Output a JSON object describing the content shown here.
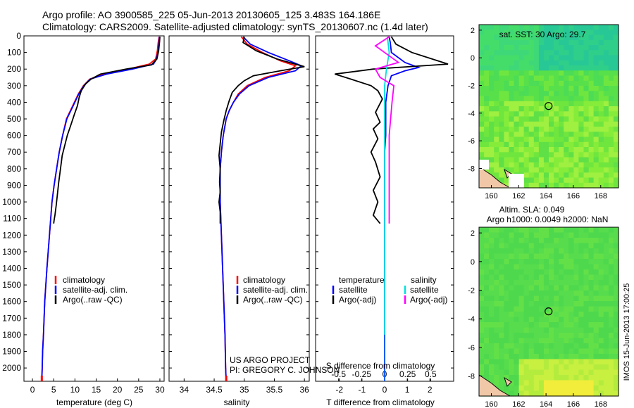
{
  "header": {
    "title_line1": "Argo profile: AO 3900585_225 05-Jun-2013 20130605_125 3.483S 164.186E",
    "title_line2": "Climatology: CARS2009. Satellite-adjusted climatology: synTS_20130607.nc (1.4d later)"
  },
  "credits": {
    "project": "US ARGO PROJECT",
    "pi": "PI: GREGORY C. JOHNSON"
  },
  "timestamp": "IMOS 15-Jun-2013 17:00:25",
  "colors": {
    "climatology": "#ff0000",
    "satellite": "#0000ff",
    "argo": "#000000",
    "salinity_satellite": "#00e0e0",
    "salinity_argo": "#ff00ff"
  },
  "chart_data": [
    {
      "type": "line",
      "id": "temperature",
      "xlabel": "temperature (deg C)",
      "ylabel": "",
      "xlim": [
        -2,
        31
      ],
      "ylim": [
        2080,
        0
      ],
      "xticks": [
        "0",
        "5",
        "10",
        "15",
        "20",
        "25",
        "30"
      ],
      "xtick_values": [
        0,
        5,
        10,
        15,
        20,
        25,
        30
      ],
      "yticks": [
        "0",
        "100",
        "200",
        "300",
        "400",
        "500",
        "600",
        "700",
        "800",
        "900",
        "1000",
        "1100",
        "1200",
        "1300",
        "1400",
        "1500",
        "1600",
        "1700",
        "1800",
        "1900",
        "2000"
      ],
      "ytick_values": [
        0,
        100,
        200,
        300,
        400,
        500,
        600,
        700,
        800,
        900,
        1000,
        1100,
        1200,
        1300,
        1400,
        1500,
        1600,
        1700,
        1800,
        1900,
        2000
      ],
      "legend": [
        "climatology",
        "satellite-adj. clim.",
        "Argo(..raw -QC)"
      ],
      "series": [
        {
          "name": "climatology",
          "color": "#ff0000",
          "x": [
            29.8,
            29.6,
            29.4,
            29.0,
            27.5,
            22.5,
            17.0,
            13.5,
            12.0,
            10.8,
            9.5,
            8.0,
            7.1,
            6.3,
            5.7,
            5.1,
            4.6,
            4.0,
            3.4,
            2.9,
            2.6,
            2.4,
            2.3,
            2.2
          ],
          "y": [
            5,
            40,
            90,
            140,
            170,
            200,
            230,
            260,
            300,
            350,
            420,
            500,
            600,
            700,
            800,
            900,
            1000,
            1200,
            1400,
            1600,
            1800,
            1900,
            2000,
            2080
          ]
        },
        {
          "name": "satellite-adj. clim.",
          "color": "#0000ff",
          "x": [
            29.9,
            29.8,
            29.6,
            29.2,
            28.5,
            23.5,
            17.5,
            13.6,
            12.1,
            10.9,
            9.6,
            8.1,
            7.1,
            6.3,
            5.7,
            5.1,
            4.6,
            4.0,
            3.4,
            2.9,
            2.6,
            2.4,
            2.3,
            2.2
          ],
          "y": [
            5,
            40,
            90,
            140,
            170,
            200,
            230,
            260,
            300,
            350,
            420,
            500,
            600,
            700,
            800,
            900,
            1000,
            1200,
            1400,
            1600,
            1800,
            1900,
            2000,
            2080
          ]
        },
        {
          "name": "Argo(..raw -QC)",
          "color": "#000000",
          "x": [
            30.0,
            29.9,
            29.7,
            29.3,
            28.0,
            22.0,
            16.0,
            13.8,
            12.5,
            11.5,
            11.0,
            10.6,
            9.9,
            9.0,
            8.2,
            7.6,
            7.0,
            6.6,
            6.2,
            5.9,
            5.6,
            5.3,
            5.1,
            5.0
          ],
          "y": [
            5,
            40,
            90,
            140,
            175,
            200,
            230,
            260,
            290,
            330,
            370,
            420,
            470,
            540,
            600,
            660,
            720,
            800,
            880,
            950,
            1020,
            1080,
            1110,
            1130
          ]
        }
      ]
    },
    {
      "type": "line",
      "id": "salinity",
      "xlabel": "salinity",
      "ylabel": "",
      "xlim": [
        33.75,
        36.08
      ],
      "ylim": [
        2080,
        0
      ],
      "xticks": [
        "34",
        "34.5",
        "35",
        "35.5",
        "36"
      ],
      "xtick_values": [
        34,
        34.5,
        35,
        35.5,
        36
      ],
      "legend": [
        "climatology",
        "satellite-adj. clim.",
        "Argo(..raw -QC)"
      ],
      "series": [
        {
          "name": "climatology",
          "color": "#ff0000",
          "x": [
            34.95,
            35.05,
            35.3,
            35.6,
            35.85,
            35.75,
            35.35,
            35.05,
            34.9,
            34.82,
            34.75,
            34.7,
            34.65,
            34.62,
            34.6,
            34.6,
            34.6,
            34.62,
            34.64,
            34.66,
            34.68,
            34.69,
            34.7
          ],
          "y": [
            5,
            50,
            100,
            150,
            180,
            210,
            250,
            300,
            350,
            400,
            450,
            500,
            600,
            700,
            800,
            900,
            1000,
            1200,
            1400,
            1600,
            1800,
            2000,
            2080
          ]
        },
        {
          "name": "satellite-adj. clim.",
          "color": "#0000ff",
          "x": [
            34.98,
            35.1,
            35.4,
            35.75,
            35.95,
            35.85,
            35.4,
            35.08,
            34.92,
            34.82,
            34.75,
            34.7,
            34.65,
            34.62,
            34.6,
            34.6,
            34.6,
            34.62,
            34.64,
            34.66,
            34.68,
            34.69,
            34.7
          ],
          "y": [
            5,
            50,
            100,
            150,
            180,
            210,
            250,
            300,
            350,
            400,
            450,
            500,
            600,
            700,
            800,
            900,
            1000,
            1200,
            1400,
            1600,
            1800,
            2000,
            2080
          ]
        },
        {
          "name": "Argo(..raw -QC)",
          "color": "#000000",
          "x": [
            35.0,
            34.98,
            35.2,
            35.55,
            36.0,
            35.6,
            35.15,
            35.0,
            34.9,
            34.8,
            34.75,
            34.7,
            34.66,
            34.62,
            34.6,
            34.58,
            34.6,
            34.59,
            34.6,
            34.58,
            34.6,
            34.6
          ],
          "y": [
            5,
            40,
            90,
            140,
            185,
            210,
            240,
            270,
            300,
            340,
            390,
            450,
            510,
            580,
            650,
            720,
            800,
            880,
            940,
            1000,
            1060,
            1130
          ]
        }
      ]
    },
    {
      "type": "line",
      "id": "difference",
      "xlabel": "T difference from climatology",
      "x2label": "S difference from climatology",
      "ylabel": "",
      "xlim": [
        -3.05,
        3.05
      ],
      "ylim": [
        2080,
        0
      ],
      "xticks": [
        "-2",
        "-1",
        "0",
        "1",
        "2"
      ],
      "xtick_values": [
        -2,
        -1,
        0,
        1,
        2
      ],
      "x2ticks": [
        "-0.5",
        "-0.25",
        "0",
        "0.25",
        "0.5"
      ],
      "x2tick_values": [
        -0.5,
        -0.25,
        0,
        0.25,
        0.5
      ],
      "legend": {
        "temperature_title": "temperature",
        "salinity_title": "salinity",
        "entries": [
          "satellite",
          "Argo(-adj)",
          "satellite",
          "Argo(-adj)"
        ]
      },
      "series": [
        {
          "name": "temperature satellite",
          "color": "#0000ff",
          "axis": "T",
          "x": [
            0.2,
            0.25,
            0.3,
            0.9,
            1.5,
            0.9,
            0.3,
            0.15,
            0.1,
            0.05,
            0.05,
            0.05,
            0.0,
            0.0,
            0.0,
            0.0,
            0.0,
            0.0,
            0.0,
            0.0
          ],
          "y": [
            5,
            40,
            100,
            160,
            190,
            210,
            240,
            300,
            350,
            400,
            500,
            600,
            700,
            800,
            1000,
            1200,
            1400,
            1600,
            1800,
            2080
          ]
        },
        {
          "name": "temperature Argo(-adj)",
          "color": "#000000",
          "axis": "T",
          "x": [
            0.3,
            0.5,
            1.2,
            2.8,
            -0.5,
            -2.2,
            -1.5,
            -0.6,
            -0.3,
            -0.1,
            -0.4,
            -0.2,
            -0.5,
            -0.3,
            -0.6,
            -0.4,
            -0.2,
            -0.5,
            -0.3,
            -0.5,
            -0.2
          ],
          "y": [
            5,
            50,
            100,
            170,
            200,
            230,
            260,
            300,
            330,
            380,
            460,
            520,
            560,
            620,
            700,
            760,
            850,
            930,
            1000,
            1080,
            1130
          ]
        },
        {
          "name": "salinity satellite",
          "color": "#00e0e0",
          "axis": "S",
          "x": [
            0.03,
            0.05,
            0.02,
            0.0,
            0.0,
            0.0,
            0.0,
            0.0,
            0.0,
            0.0,
            0.0,
            0.0
          ],
          "y": [
            5,
            100,
            200,
            300,
            400,
            600,
            800,
            1000,
            1200,
            1500,
            1800,
            2080
          ]
        },
        {
          "name": "salinity Argo(-adj)",
          "color": "#ff00ff",
          "axis": "S",
          "x": [
            0.05,
            -0.1,
            0.05,
            0.15,
            -0.1,
            -0.05,
            0.1,
            0.08,
            0.05,
            0.05,
            0.05,
            0.05
          ],
          "y": [
            5,
            60,
            120,
            160,
            200,
            250,
            300,
            400,
            600,
            800,
            1000,
            1130
          ]
        }
      ]
    },
    {
      "type": "heatmap",
      "id": "sst-map",
      "title": "sat. SST: 30 Argo: 29.7",
      "xlim": [
        159.1,
        169.3
      ],
      "ylim": [
        -9.4,
        2.4
      ],
      "xticks": [
        "160",
        "162",
        "164",
        "166",
        "168"
      ],
      "xtick_values": [
        160,
        162,
        164,
        166,
        168
      ],
      "yticks": [
        "2",
        "0",
        "-2",
        "-4",
        "-6",
        "-8"
      ],
      "ytick_values": [
        2,
        0,
        -2,
        -4,
        -6,
        -8
      ],
      "marker": {
        "lon": 164.186,
        "lat": -3.483
      }
    },
    {
      "type": "heatmap",
      "id": "sla-map",
      "title": "Altim. SLA: 0.049",
      "subtitle": "Argo h1000: 0.0049 h2000: NaN",
      "xlim": [
        159.1,
        169.3
      ],
      "ylim": [
        -9.4,
        2.4
      ],
      "xticks": [
        "160",
        "162",
        "164",
        "166",
        "168"
      ],
      "xtick_values": [
        160,
        162,
        164,
        166,
        168
      ],
      "yticks": [
        "2",
        "0",
        "-2",
        "-4",
        "-6",
        "-8"
      ],
      "ytick_values": [
        2,
        0,
        -2,
        -4,
        -6,
        -8
      ],
      "marker": {
        "lon": 164.186,
        "lat": -3.483
      }
    }
  ]
}
